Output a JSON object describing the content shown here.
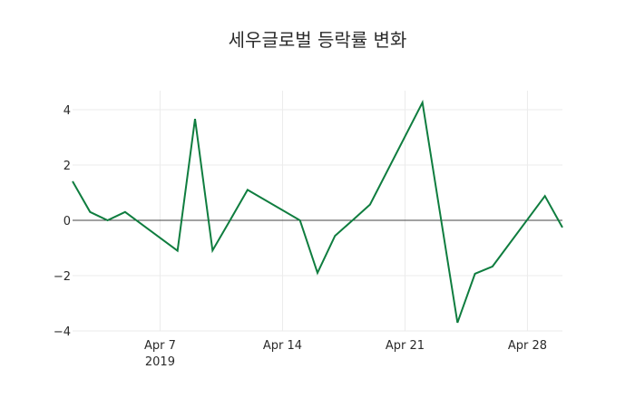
{
  "chart_data": {
    "type": "line",
    "title": "세우글로벌 등락률 변화",
    "xlabel": "",
    "ylabel": "",
    "x": [
      "2019-04-02",
      "2019-04-03",
      "2019-04-04",
      "2019-04-05",
      "2019-04-08",
      "2019-04-09",
      "2019-04-10",
      "2019-04-11",
      "2019-04-12",
      "2019-04-15",
      "2019-04-16",
      "2019-04-17",
      "2019-04-18",
      "2019-04-19",
      "2019-04-22",
      "2019-04-23",
      "2019-04-24",
      "2019-04-25",
      "2019-04-26",
      "2019-04-29",
      "2019-04-30"
    ],
    "series": [
      {
        "name": "등락률",
        "color": "#0f7d3f",
        "values": [
          1.41,
          0.3,
          0.0,
          0.3,
          -1.1,
          3.67,
          -1.09,
          0.0,
          1.1,
          0.0,
          -1.9,
          -0.56,
          0.0,
          0.57,
          4.26,
          0.28,
          -3.7,
          -1.93,
          -1.67,
          0.88,
          -0.26
        ]
      }
    ],
    "xticks": [
      {
        "date": "2019-04-07",
        "label": "Apr 7",
        "sublabel": "2019"
      },
      {
        "date": "2019-04-14",
        "label": "Apr 14",
        "sublabel": ""
      },
      {
        "date": "2019-04-21",
        "label": "Apr 21",
        "sublabel": ""
      },
      {
        "date": "2019-04-28",
        "label": "Apr 28",
        "sublabel": ""
      }
    ],
    "yticks": [
      4,
      2,
      0,
      -2,
      -4
    ],
    "ytick_labels": [
      "4",
      "2",
      "0",
      "−2",
      "−4"
    ],
    "xlim": [
      "2019-04-02",
      "2019-04-30"
    ],
    "ylim": [
      -4.2,
      4.7
    ],
    "grid": true,
    "zero_line": true,
    "legend": "none"
  }
}
